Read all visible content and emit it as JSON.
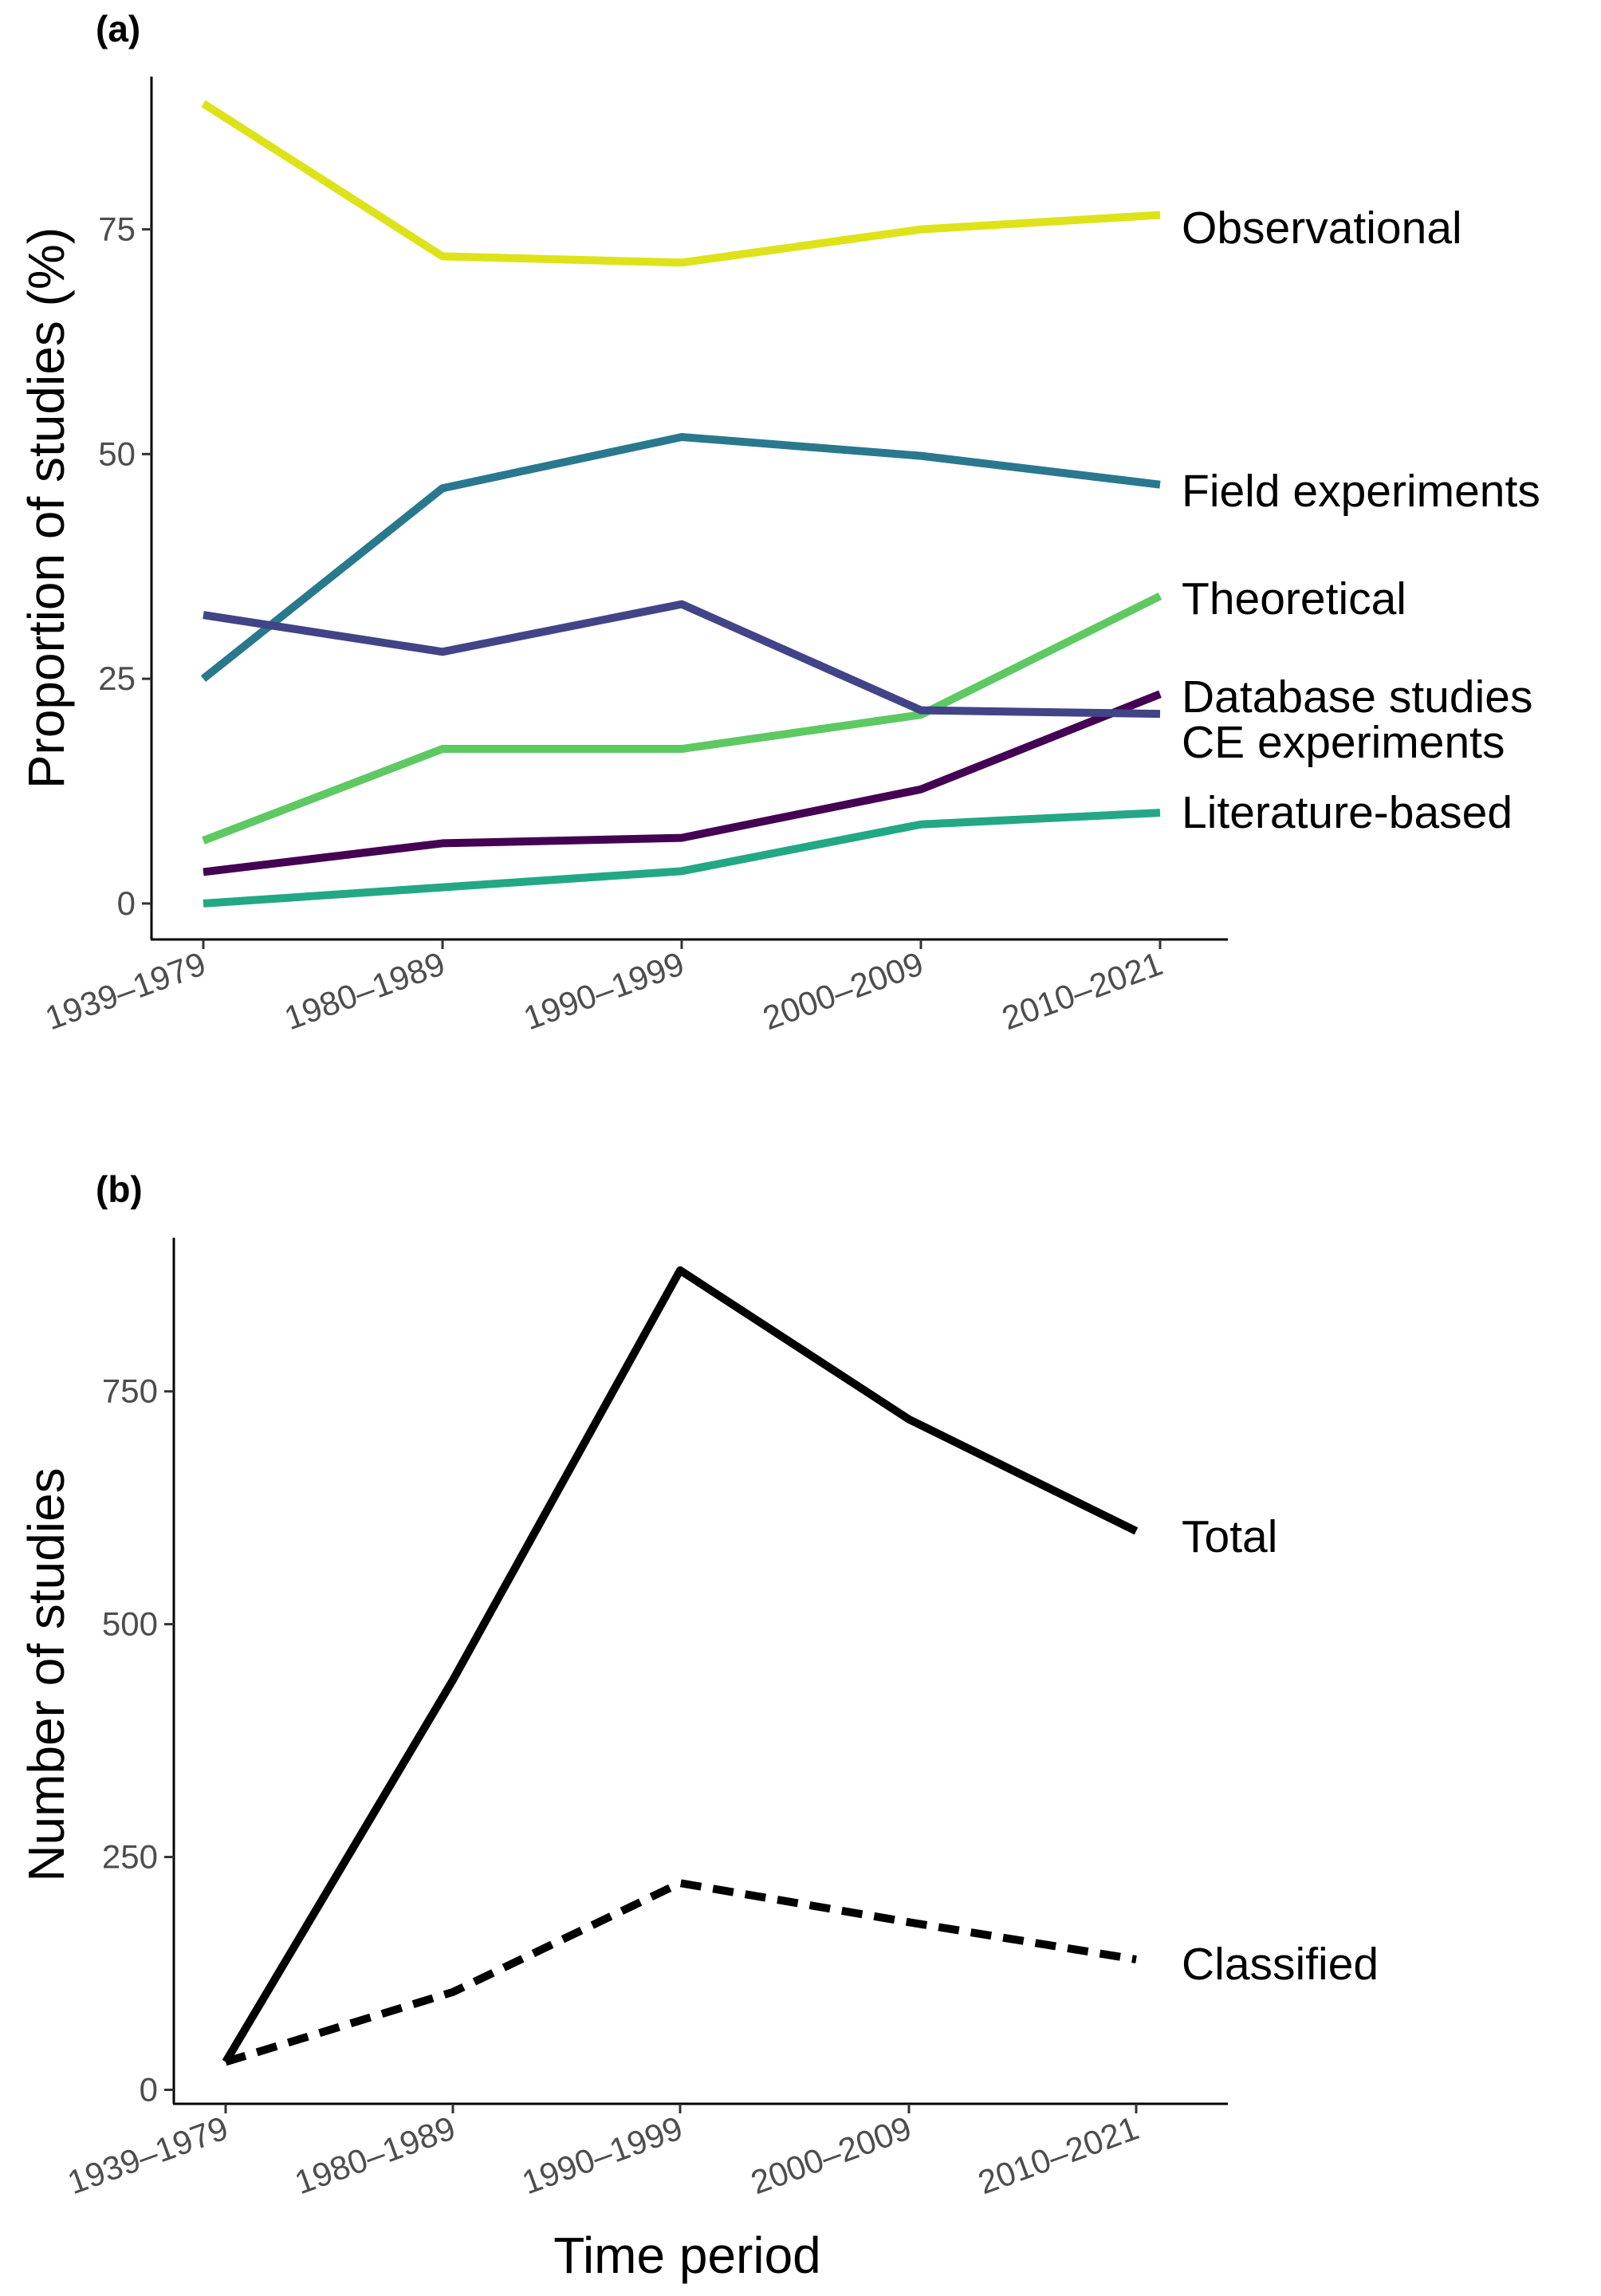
{
  "chart_data": [
    {
      "panel": "(a)",
      "type": "line",
      "title": "",
      "xlabel": "",
      "ylabel": "Proportion of studies (%)",
      "categories": [
        "1939–1979",
        "1980–1989",
        "1990–1999",
        "2000–2009",
        "2010–2021"
      ],
      "ylim": [
        -4,
        92
      ],
      "yticks": [
        0,
        25,
        50,
        75
      ],
      "series": [
        {
          "name": "Observational",
          "color": "#dde318",
          "dash": "solid",
          "values": [
            89,
            72,
            71.3,
            75,
            76.6
          ]
        },
        {
          "name": "Field experiments",
          "color": "#2a788e",
          "dash": "solid",
          "values": [
            25,
            46.2,
            51.9,
            49.8,
            46.6
          ]
        },
        {
          "name": "Theoretical",
          "color": "#5ec962",
          "dash": "solid",
          "values": [
            7,
            17.2,
            17.2,
            21,
            34.2
          ]
        },
        {
          "name": "Database studies",
          "color": "#440154",
          "dash": "solid",
          "values": [
            3.5,
            6.7,
            7.3,
            12.7,
            23.3
          ]
        },
        {
          "name": "CE experiments",
          "color": "#414487",
          "dash": "solid",
          "values": [
            32.1,
            28,
            33.3,
            21.5,
            21.1
          ]
        },
        {
          "name": "Literature-based",
          "color": "#22a884",
          "dash": "solid",
          "values": [
            0,
            1.8,
            3.6,
            8.8,
            10.1
          ]
        }
      ]
    },
    {
      "panel": "(b)",
      "type": "line",
      "title": "",
      "xlabel": "Time period",
      "ylabel": "Number of studies",
      "categories": [
        "1939–1979",
        "1980–1989",
        "1990–1999",
        "2000–2009",
        "2010–2021"
      ],
      "ylim": [
        -15,
        915
      ],
      "yticks": [
        0,
        250,
        500,
        750
      ],
      "series": [
        {
          "name": "Total",
          "color": "#000000",
          "dash": "solid",
          "values": [
            30,
            440,
            880,
            720,
            600
          ]
        },
        {
          "name": "Classified",
          "color": "#000000",
          "dash": "dashed",
          "values": [
            30,
            105,
            222,
            180,
            140
          ]
        }
      ]
    }
  ]
}
